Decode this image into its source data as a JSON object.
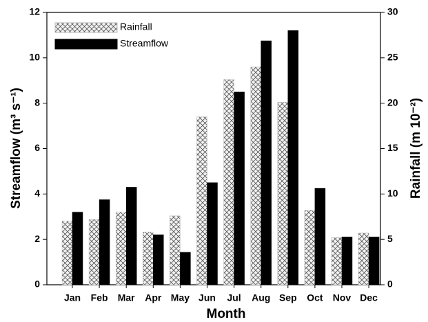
{
  "chart_data": {
    "type": "bar",
    "xlabel": "Month",
    "ylabel": "Streamflow (m³ s⁻¹)",
    "y2label": "Rainfall (m 10⁻²)",
    "categories": [
      "Jan",
      "Feb",
      "Mar",
      "Apr",
      "May",
      "Jun",
      "Jul",
      "Aug",
      "Sep",
      "Oct",
      "Nov",
      "Dec"
    ],
    "series": [
      {
        "name": "Rainfall",
        "color": "#555555",
        "pattern": "crosshatch",
        "axis": "y2",
        "values": [
          7.0,
          7.2,
          8.0,
          5.8,
          7.6,
          18.5,
          22.6,
          24.0,
          20.1,
          8.2,
          5.2,
          5.7
        ]
      },
      {
        "name": "Streamflow",
        "color": "#000000",
        "values": [
          3.2,
          3.75,
          4.3,
          2.2,
          1.43,
          4.5,
          8.5,
          10.75,
          11.2,
          4.25,
          2.1,
          2.1
        ]
      }
    ],
    "ylim": [
      0,
      12
    ],
    "yticks": [
      0,
      2,
      4,
      6,
      8,
      10,
      12
    ],
    "y2lim": [
      0,
      30
    ],
    "y2ticks": [
      0,
      5,
      10,
      15,
      20,
      25,
      30
    ],
    "legend": "upper-left"
  }
}
